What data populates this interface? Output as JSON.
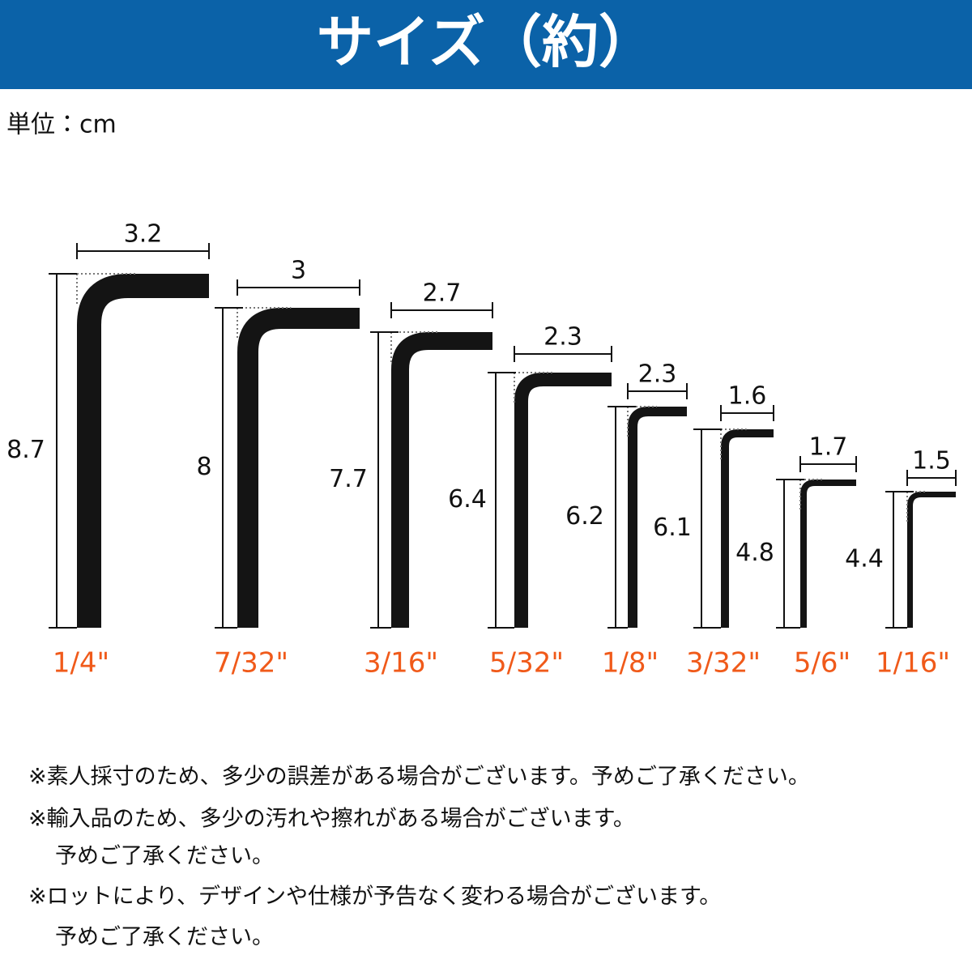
{
  "header": {
    "title": "サイズ（約）"
  },
  "unit": "単位：cm",
  "keys": [
    {
      "size": "1/4\"",
      "width": 3.2,
      "height": 8.7
    },
    {
      "size": "7/32\"",
      "width": 3,
      "height": 8
    },
    {
      "size": "3/16\"",
      "width": 2.7,
      "height": 7.7
    },
    {
      "size": "5/32\"",
      "width": 2.3,
      "height": 6.4
    },
    {
      "size": "1/8\"",
      "width": 2.3,
      "height": 6.2
    },
    {
      "size": "3/32\"",
      "width": 1.6,
      "height": 6.1
    },
    {
      "size": "5/6\"",
      "width": 1.7,
      "height": 4.8
    },
    {
      "size": "1/16\"",
      "width": 1.5,
      "height": 4.4
    }
  ],
  "notes": [
    "※素人採寸のため、多少の誤差がある場合がございます。予めご了承ください。",
    "※輸入品のため、多少の汚れや擦れがある場合がございます。",
    "予めご了承ください。",
    "※ロットにより、デザインや仕様が予告なく変わる場合がございます。",
    "予めご了承ください。"
  ]
}
